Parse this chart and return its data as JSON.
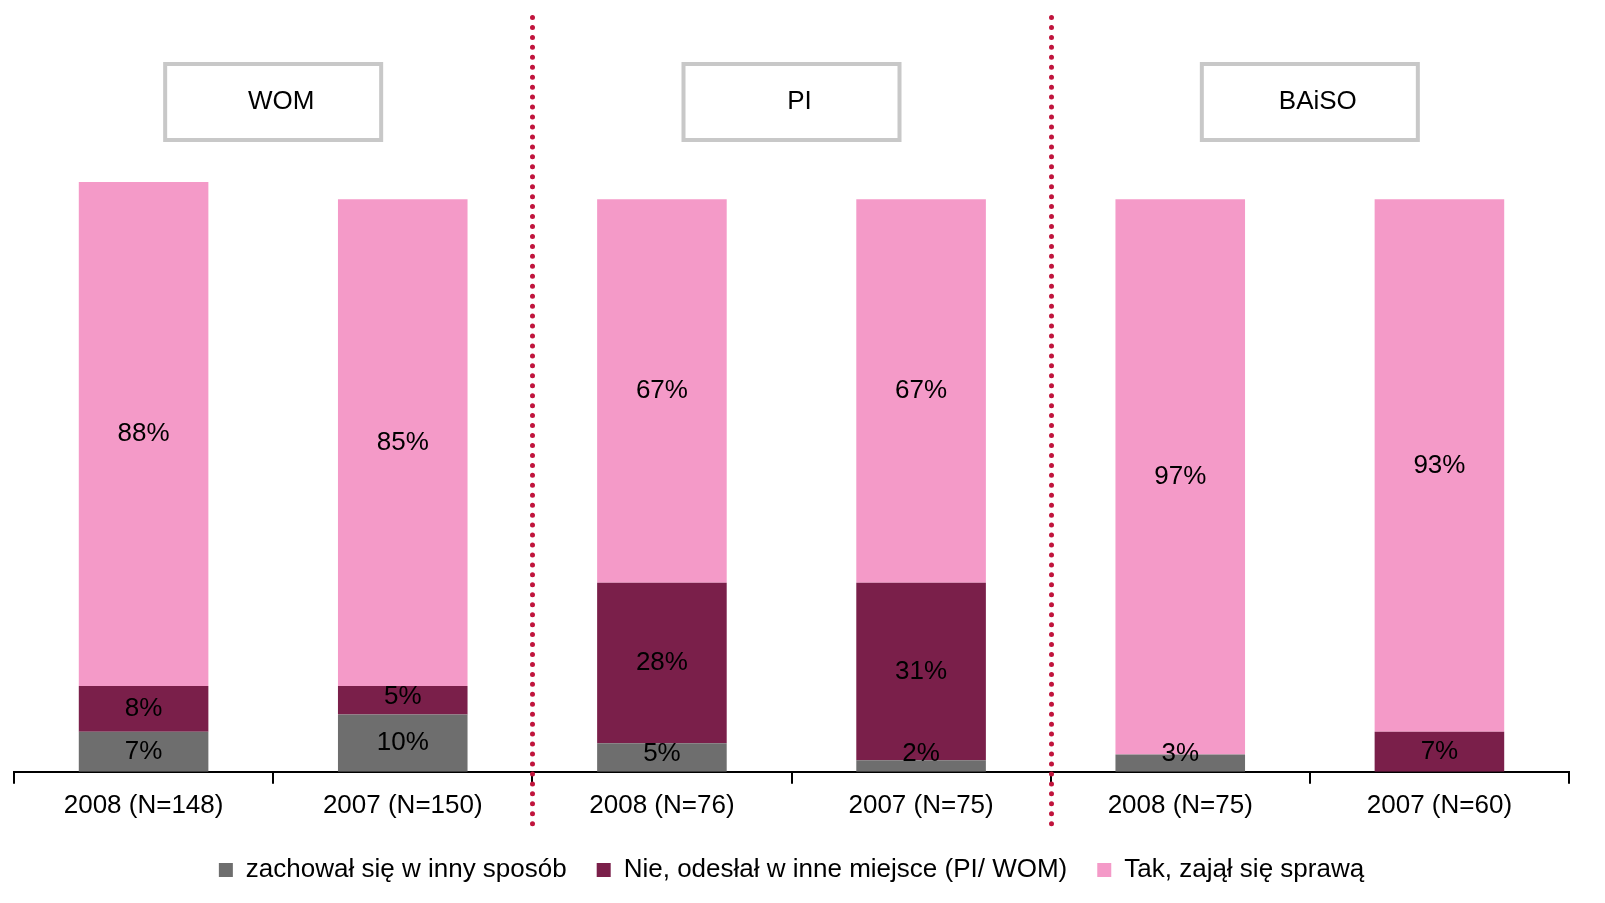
{
  "chart_data": {
    "type": "bar",
    "stacked": true,
    "tick_labels": "x",
    "legend": "bottom",
    "categories": [
      "2008 (N=148)",
      "2007 (N=150)",
      "2008 (N=76)",
      "2007 (N=75)",
      "2008 (N=75)",
      "2007 (N=60)"
    ],
    "annotations": [
      "WOM",
      "PI",
      "BAiSO"
    ],
    "series": [
      {
        "name": "zachował się w inny sposób",
        "color": "#6e6e6e",
        "values": [
          7,
          10,
          5,
          2,
          3,
          null
        ],
        "value_labels": [
          "7%",
          "10%",
          "5%",
          "2%",
          "3%",
          null
        ]
      },
      {
        "name": "Nie, odesłał w inne miejsce (PI/ WOM)",
        "color": "#7a1f4a",
        "values": [
          8,
          5,
          28,
          31,
          null,
          7
        ],
        "value_labels": [
          "8%",
          "5%",
          "28%",
          "31%",
          null,
          "7%"
        ]
      },
      {
        "name": "Tak, zajął się sprawą",
        "color": "#f49ac8",
        "values": [
          88,
          85,
          67,
          67,
          97,
          93
        ],
        "value_labels": [
          "88%",
          "85%",
          "67%",
          "67%",
          "97%",
          "93%"
        ]
      }
    ]
  }
}
